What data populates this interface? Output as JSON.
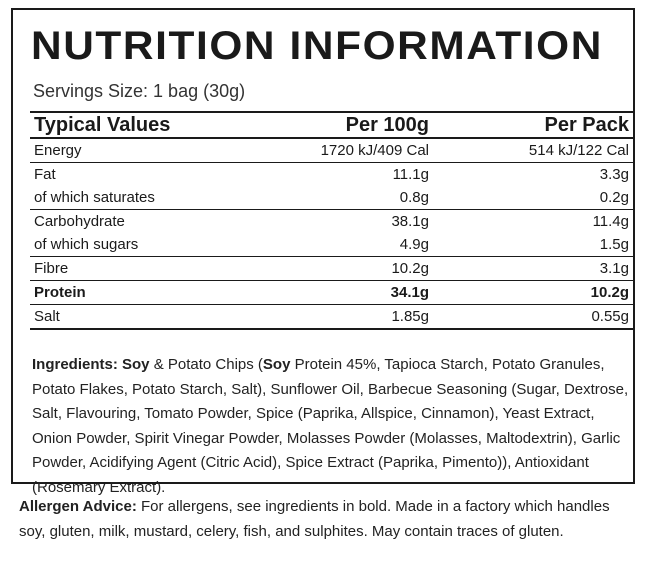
{
  "title": "NUTRITION INFORMATION",
  "servings": "Servings Size: 1 bag (30g)",
  "table": {
    "headers": [
      "Typical Values",
      "Per 100g",
      "Per Pack"
    ],
    "rows": [
      {
        "label": "Energy",
        "per100": "1720 kJ/409 Cal",
        "perPack": "514 kJ/122 Cal"
      },
      {
        "label": "Fat",
        "per100": "11.1g",
        "perPack": "3.3g"
      },
      {
        "label": "of which saturates",
        "per100": "0.8g",
        "perPack": "0.2g"
      },
      {
        "label": "Carbohydrate",
        "per100": "38.1g",
        "perPack": "11.4g"
      },
      {
        "label": "of which sugars",
        "per100": "4.9g",
        "perPack": "1.5g"
      },
      {
        "label": "Fibre",
        "per100": "10.2g",
        "perPack": "3.1g"
      },
      {
        "label": "Protein",
        "per100": "34.1g",
        "perPack": "10.2g"
      },
      {
        "label": "Salt",
        "per100": "1.85g",
        "perPack": "0.55g"
      }
    ]
  },
  "ingredients": {
    "label": "Ingredients:",
    "soy1": "Soy",
    "part1": " & Potato Chips (",
    "soy2": "Soy",
    "part2": " Protein 45%, Tapioca Starch, Potato Granules, Potato Flakes, Potato Starch, Salt), Sunflower Oil, Barbecue Seasoning (Sugar, Dextrose, Salt, Flavouring, Tomato Powder, Spice (Paprika, Allspice, Cinnamon), Yeast Extract, Onion Powder, Spirit Vinegar Powder, Molasses Powder (Molasses, Maltodextrin), Garlic Powder, Acidifying Agent (Citric Acid), Spice Extract (Paprika, Pimento)), Antioxidant (Rosemary Extract)."
  },
  "allergen": {
    "label": "Allergen Advice:",
    "text": " For allergens, see ingredients in bold. Made in a factory which handles soy, gluten, milk, mustard, celery, fish, and sulphites. May contain traces of gluten."
  }
}
